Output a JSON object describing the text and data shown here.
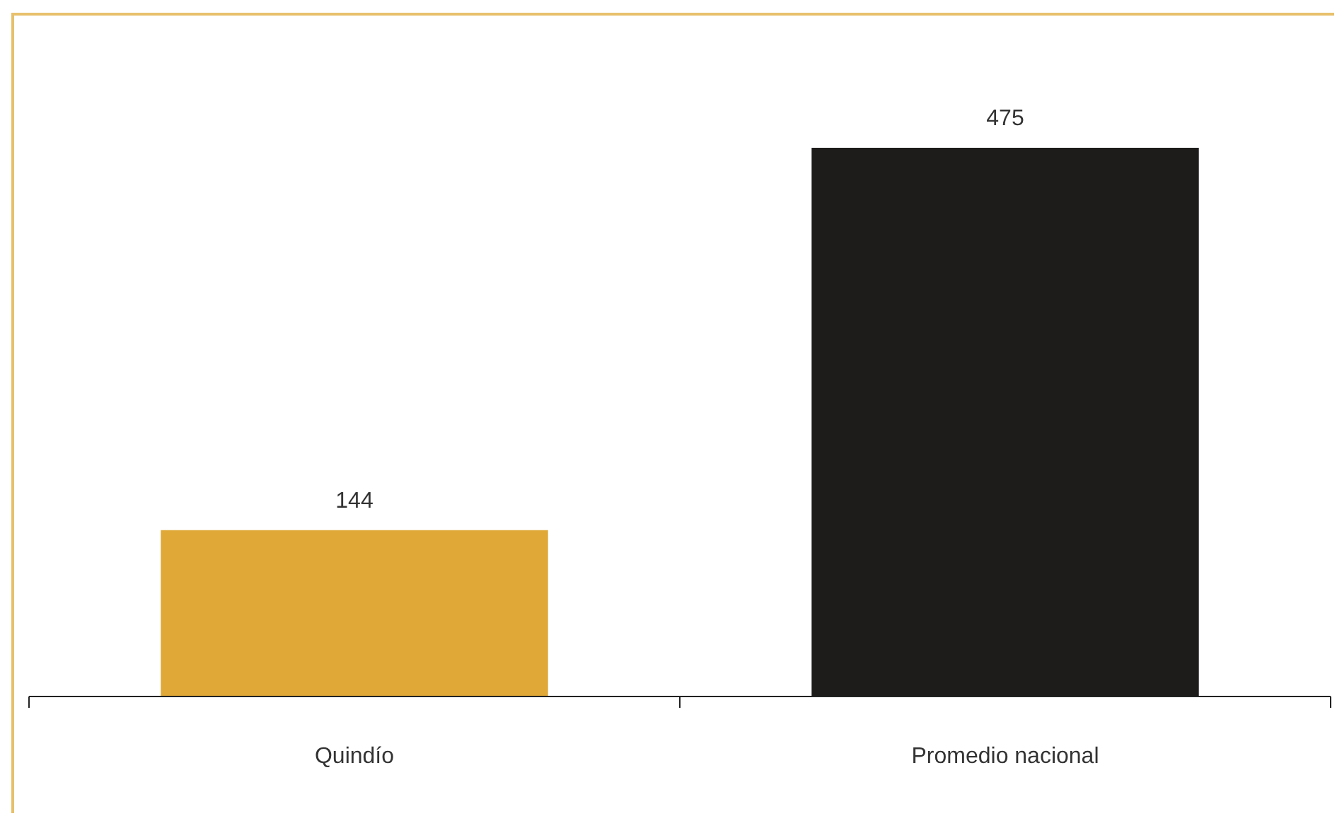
{
  "chart_data": {
    "type": "bar",
    "categories": [
      "Quindío",
      "Promedio nacional"
    ],
    "values": [
      144,
      475
    ],
    "colors": [
      "#dfa837",
      "#1e1c1a"
    ],
    "data_labels": true
  }
}
